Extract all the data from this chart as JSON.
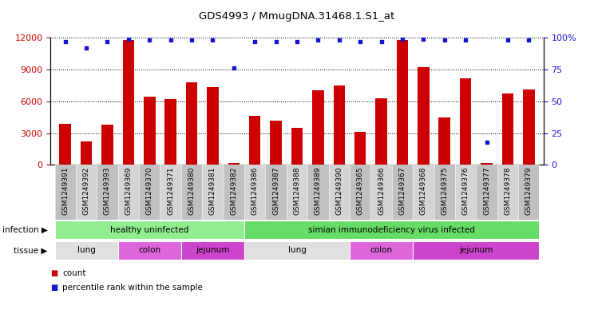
{
  "title": "GDS4993 / MmugDNA.31468.1.S1_at",
  "samples": [
    "GSM1249391",
    "GSM1249392",
    "GSM1249393",
    "GSM1249369",
    "GSM1249370",
    "GSM1249371",
    "GSM1249380",
    "GSM1249381",
    "GSM1249382",
    "GSM1249386",
    "GSM1249387",
    "GSM1249388",
    "GSM1249389",
    "GSM1249390",
    "GSM1249365",
    "GSM1249366",
    "GSM1249367",
    "GSM1249368",
    "GSM1249375",
    "GSM1249376",
    "GSM1249377",
    "GSM1249378",
    "GSM1249379"
  ],
  "counts": [
    3900,
    2200,
    3800,
    11800,
    6400,
    6200,
    7800,
    7300,
    200,
    4600,
    4200,
    3500,
    7000,
    7500,
    3100,
    6300,
    11800,
    9200,
    4500,
    8200,
    150,
    6700,
    7100
  ],
  "percentiles": [
    97,
    92,
    97,
    99,
    98,
    98,
    98,
    98,
    76,
    97,
    97,
    97,
    98,
    98,
    97,
    97,
    99,
    99,
    98,
    98,
    18,
    98,
    98
  ],
  "bar_color": "#cc0000",
  "dot_color": "#1515cc",
  "ylim_left": [
    0,
    12000
  ],
  "yticks_left": [
    0,
    3000,
    6000,
    9000,
    12000
  ],
  "ylim_right": [
    0,
    100
  ],
  "yticks_right": [
    0,
    25,
    50,
    75,
    100
  ],
  "infection_groups": [
    {
      "label": "healthy uninfected",
      "start": 0,
      "end": 8,
      "color": "#90ee90"
    },
    {
      "label": "simian immunodeficiency virus infected",
      "start": 9,
      "end": 22,
      "color": "#66dd66"
    }
  ],
  "tissue_groups": [
    {
      "label": "lung",
      "start": 0,
      "end": 2,
      "color": "#e0e0e0"
    },
    {
      "label": "colon",
      "start": 3,
      "end": 5,
      "color": "#dd66dd"
    },
    {
      "label": "jejunum",
      "start": 6,
      "end": 8,
      "color": "#cc44cc"
    },
    {
      "label": "lung",
      "start": 9,
      "end": 13,
      "color": "#e0e0e0"
    },
    {
      "label": "colon",
      "start": 14,
      "end": 16,
      "color": "#dd66dd"
    },
    {
      "label": "jejunum",
      "start": 17,
      "end": 22,
      "color": "#cc44cc"
    }
  ],
  "bg_color": "#cccccc",
  "col_colors": [
    "#c8c8c8",
    "#d8d8d8"
  ]
}
